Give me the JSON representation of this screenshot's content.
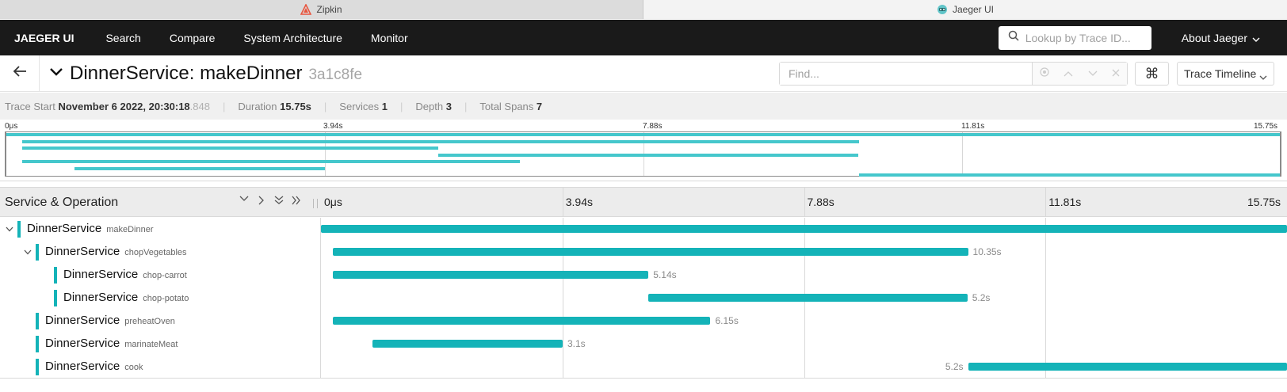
{
  "browser_tabs": [
    {
      "label": "Zipkin",
      "icon": "zipkin-icon",
      "active": false
    },
    {
      "label": "Jaeger UI",
      "icon": "jaeger-icon",
      "active": true
    }
  ],
  "nav": {
    "brand": "JAEGER UI",
    "links": [
      "Search",
      "Compare",
      "System Architecture",
      "Monitor"
    ],
    "lookup_placeholder": "Lookup by Trace ID...",
    "about": "About Jaeger"
  },
  "trace": {
    "title": "DinnerService: makeDinner",
    "id": "3a1c8fe",
    "find_placeholder": "Find...",
    "kbd_symbol": "⌘",
    "view_mode": "Trace Timeline"
  },
  "summary": {
    "trace_start_label": "Trace Start",
    "trace_start_value": "November 6 2022, 20:30:18",
    "trace_start_ms": ".848",
    "duration_label": "Duration",
    "duration_value": "15.75s",
    "services_label": "Services",
    "services_value": "1",
    "depth_label": "Depth",
    "depth_value": "3",
    "total_spans_label": "Total Spans",
    "total_spans_value": "7"
  },
  "minimap_ticks": [
    "0μs",
    "3.94s",
    "7.88s",
    "11.81s",
    "15.75s"
  ],
  "timeline": {
    "header_title": "Service & Operation",
    "ticks": [
      "0μs",
      "3.94s",
      "7.88s",
      "11.81s",
      "15.75s"
    ],
    "total_seconds": 15.75
  },
  "colors": {
    "span": "#14b3b8",
    "minimap_span": "#45c7cc",
    "nav_bg": "#1a1a1a"
  },
  "spans": [
    {
      "service": "DinnerService",
      "operation": "makeDinner",
      "depth": 0,
      "has_children": true,
      "start": 0.0,
      "duration": 15.75,
      "duration_label": ""
    },
    {
      "service": "DinnerService",
      "operation": "chopVegetables",
      "depth": 1,
      "has_children": true,
      "start": 0.2,
      "duration": 10.35,
      "duration_label": "10.35s"
    },
    {
      "service": "DinnerService",
      "operation": "chop-carrot",
      "depth": 2,
      "has_children": false,
      "start": 0.2,
      "duration": 5.14,
      "duration_label": "5.14s"
    },
    {
      "service": "DinnerService",
      "operation": "chop-potato",
      "depth": 2,
      "has_children": false,
      "start": 5.34,
      "duration": 5.2,
      "duration_label": "5.2s"
    },
    {
      "service": "DinnerService",
      "operation": "preheatOven",
      "depth": 1,
      "has_children": false,
      "start": 0.2,
      "duration": 6.15,
      "duration_label": "6.15s"
    },
    {
      "service": "DinnerService",
      "operation": "marinateMeat",
      "depth": 1,
      "has_children": false,
      "start": 0.84,
      "duration": 3.1,
      "duration_label": "3.1s"
    },
    {
      "service": "DinnerService",
      "operation": "cook",
      "depth": 1,
      "has_children": false,
      "start": 10.55,
      "duration": 5.2,
      "duration_label": "5.2s"
    }
  ]
}
